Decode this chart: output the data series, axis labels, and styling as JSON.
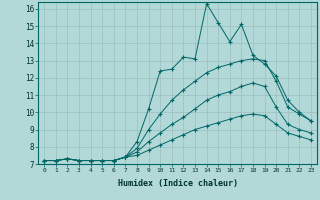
{
  "title": "",
  "xlabel": "Humidex (Indice chaleur)",
  "ylabel": "",
  "background_color": "#b2d8d8",
  "grid_color": "#c0dede",
  "line_color": "#006666",
  "xlim": [
    -0.5,
    23.5
  ],
  "ylim": [
    7,
    16.4
  ],
  "xticks": [
    0,
    1,
    2,
    3,
    4,
    5,
    6,
    7,
    8,
    9,
    10,
    11,
    12,
    13,
    14,
    15,
    16,
    17,
    18,
    19,
    20,
    21,
    22,
    23
  ],
  "yticks": [
    7,
    8,
    9,
    10,
    11,
    12,
    13,
    14,
    15,
    16
  ],
  "series": [
    [
      7.2,
      7.2,
      7.3,
      7.2,
      7.2,
      7.2,
      7.2,
      7.4,
      8.3,
      10.2,
      12.4,
      12.5,
      13.2,
      13.1,
      16.3,
      15.2,
      14.1,
      15.1,
      13.3,
      12.8,
      12.1,
      10.7,
      10.0,
      9.5
    ],
    [
      7.2,
      7.2,
      7.3,
      7.2,
      7.2,
      7.2,
      7.2,
      7.4,
      7.9,
      9.0,
      9.9,
      10.7,
      11.3,
      11.8,
      12.3,
      12.6,
      12.8,
      13.0,
      13.1,
      13.0,
      11.8,
      10.3,
      9.9,
      9.5
    ],
    [
      7.2,
      7.2,
      7.3,
      7.2,
      7.2,
      7.2,
      7.2,
      7.4,
      7.7,
      8.3,
      8.8,
      9.3,
      9.7,
      10.2,
      10.7,
      11.0,
      11.2,
      11.5,
      11.7,
      11.5,
      10.3,
      9.3,
      9.0,
      8.8
    ],
    [
      7.2,
      7.2,
      7.3,
      7.2,
      7.2,
      7.2,
      7.2,
      7.4,
      7.5,
      7.8,
      8.1,
      8.4,
      8.7,
      9.0,
      9.2,
      9.4,
      9.6,
      9.8,
      9.9,
      9.8,
      9.3,
      8.8,
      8.6,
      8.4
    ]
  ],
  "marker": "+"
}
